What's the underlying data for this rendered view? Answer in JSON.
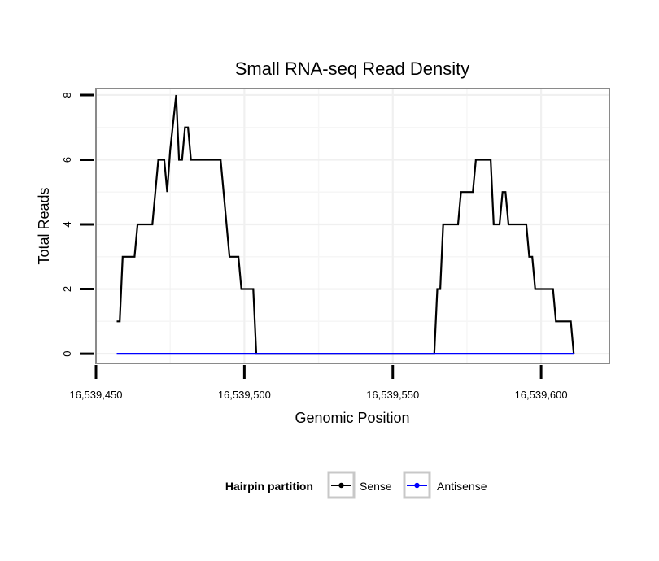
{
  "chart_data": {
    "type": "line",
    "title": "Small RNA-seq Read Density",
    "xlabel": "Genomic Position",
    "ylabel": "Total Reads",
    "xlim": [
      16539450,
      16539623
    ],
    "ylim": [
      -0.3,
      8.2
    ],
    "x_ticks": [
      16539450,
      16539500,
      16539550,
      16539600
    ],
    "x_tick_labels": [
      "16,539,450",
      "16,539,500",
      "16,539,550",
      "16,539,600"
    ],
    "y_ticks": [
      0,
      2,
      4,
      6,
      8
    ],
    "y_tick_labels": [
      "0",
      "2",
      "4",
      "6",
      "8"
    ],
    "grid": true,
    "legend": {
      "title": "Hairpin partition",
      "position": "bottom"
    },
    "series": [
      {
        "name": "Sense",
        "color": "#000000",
        "points": [
          [
            16539457,
            1
          ],
          [
            16539458,
            1
          ],
          [
            16539459,
            3
          ],
          [
            16539463,
            3
          ],
          [
            16539464,
            4
          ],
          [
            16539469,
            4
          ],
          [
            16539471,
            6
          ],
          [
            16539473,
            6
          ],
          [
            16539474,
            5
          ],
          [
            16539475,
            6.3
          ],
          [
            16539477,
            8
          ],
          [
            16539478,
            6
          ],
          [
            16539479,
            6
          ],
          [
            16539480,
            7
          ],
          [
            16539481,
            7
          ],
          [
            16539482,
            6
          ],
          [
            16539492,
            6
          ],
          [
            16539495,
            3
          ],
          [
            16539498,
            3
          ],
          [
            16539499,
            2
          ],
          [
            16539503,
            2
          ],
          [
            16539504,
            0
          ],
          [
            16539564,
            0
          ],
          [
            16539565,
            2
          ],
          [
            16539566,
            2
          ],
          [
            16539567,
            4
          ],
          [
            16539572,
            4
          ],
          [
            16539573,
            5
          ],
          [
            16539577,
            5
          ],
          [
            16539578,
            6
          ],
          [
            16539583,
            6
          ],
          [
            16539584,
            4
          ],
          [
            16539586,
            4
          ],
          [
            16539587,
            5
          ],
          [
            16539588,
            5
          ],
          [
            16539589,
            4
          ],
          [
            16539595,
            4
          ],
          [
            16539596,
            3
          ],
          [
            16539597,
            3
          ],
          [
            16539598,
            2
          ],
          [
            16539604,
            2
          ],
          [
            16539605,
            1
          ],
          [
            16539610,
            1
          ],
          [
            16539611,
            0
          ]
        ]
      },
      {
        "name": "Antisense",
        "color": "#0000ff",
        "points": [
          [
            16539457,
            0
          ],
          [
            16539611,
            0
          ]
        ]
      }
    ]
  }
}
